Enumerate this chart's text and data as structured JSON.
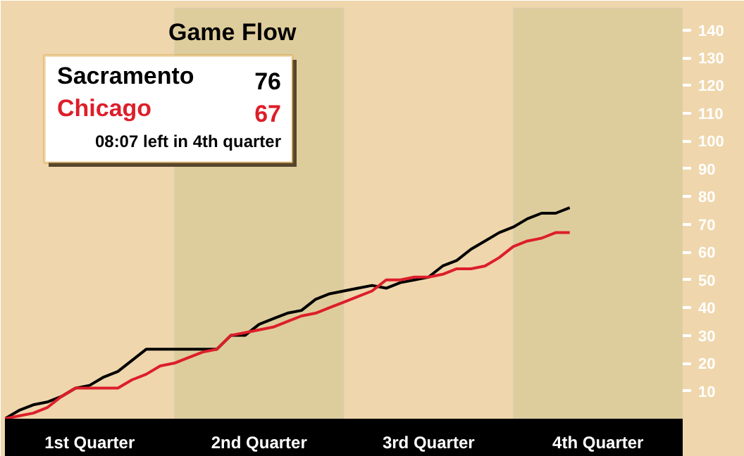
{
  "chart_data": {
    "type": "line",
    "title": "Game Flow",
    "annotations": [
      "76",
      "67",
      "08:07 left in 4th quarter"
    ],
    "categories": [
      null,
      null,
      null,
      null,
      null,
      null,
      "1st Quarter",
      null,
      null,
      null,
      null,
      null,
      null,
      null,
      null,
      null,
      null,
      null,
      "2nd Quarter",
      null,
      null,
      null,
      null,
      null,
      null,
      null,
      null,
      null,
      null,
      null,
      "3rd Quarter",
      null,
      null,
      null,
      null,
      null,
      null,
      null,
      null,
      null,
      null,
      null,
      "4th Quarter",
      null,
      null,
      null,
      null,
      null,
      null
    ],
    "ylim": [
      0,
      148
    ],
    "yticks": [
      10,
      20,
      30,
      40,
      50,
      60,
      70,
      80,
      90,
      100,
      110,
      120,
      130,
      140
    ],
    "legend": "top left",
    "series": [
      {
        "name": "Sacramento",
        "color": "#000000",
        "values": [
          0,
          3,
          5,
          6,
          8,
          11,
          12,
          15,
          17,
          21,
          25,
          25,
          25,
          25,
          25,
          25,
          30,
          30,
          34,
          36,
          38,
          39,
          43,
          45,
          46,
          47,
          48,
          47,
          49,
          50,
          51,
          55,
          57,
          61,
          64,
          67,
          69,
          72,
          74,
          74,
          76,
          null,
          null,
          null,
          null,
          null,
          null,
          null,
          null
        ]
      },
      {
        "name": "Chicago",
        "color": "#dd1e2a",
        "values": [
          0,
          1,
          2,
          4,
          8,
          11,
          11,
          11,
          11,
          14,
          16,
          19,
          20,
          22,
          24,
          25,
          30,
          31,
          32,
          33,
          35,
          37,
          38,
          40,
          42,
          44,
          46,
          50,
          50,
          51,
          51,
          52,
          54,
          54,
          55,
          58,
          62,
          64,
          65,
          67,
          67,
          null,
          null,
          null,
          null,
          null,
          null,
          null,
          null
        ]
      }
    ]
  }
}
